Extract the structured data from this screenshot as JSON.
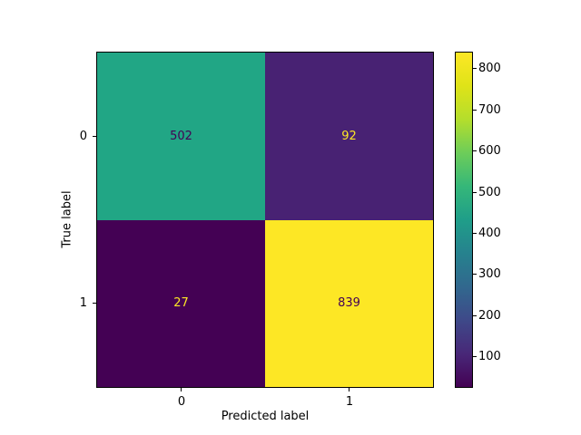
{
  "figure": {
    "background": "#ffffff",
    "text_color": "#000000"
  },
  "chart_data": {
    "type": "heatmap",
    "title": "",
    "xlabel": "Predicted label",
    "ylabel": "True label",
    "x_tick_labels": [
      "0",
      "1"
    ],
    "y_tick_labels": [
      "0",
      "1"
    ],
    "matrix": [
      [
        502,
        92
      ],
      [
        27,
        839
      ]
    ],
    "vmin": 27,
    "vmax": 839,
    "colormap": "viridis",
    "grid": false,
    "legend": false,
    "cells": [
      {
        "row": 0,
        "col": 0,
        "value": 502,
        "bg": "#21a685",
        "fg": "#440154"
      },
      {
        "row": 0,
        "col": 1,
        "value": 92,
        "bg": "#482273",
        "fg": "#fde725"
      },
      {
        "row": 1,
        "col": 0,
        "value": 27,
        "bg": "#440154",
        "fg": "#fde725"
      },
      {
        "row": 1,
        "col": 1,
        "value": 839,
        "bg": "#fde725",
        "fg": "#440154"
      }
    ],
    "colorbar": {
      "position": "right",
      "ticks": [
        100,
        200,
        300,
        400,
        500,
        600,
        700,
        800
      ]
    },
    "viridis_stops": [
      "#440154",
      "#482878",
      "#3e4989",
      "#31688e",
      "#26828e",
      "#1f9e89",
      "#35b779",
      "#6dcd59",
      "#b4de2c",
      "#dfe318",
      "#fde725"
    ]
  }
}
